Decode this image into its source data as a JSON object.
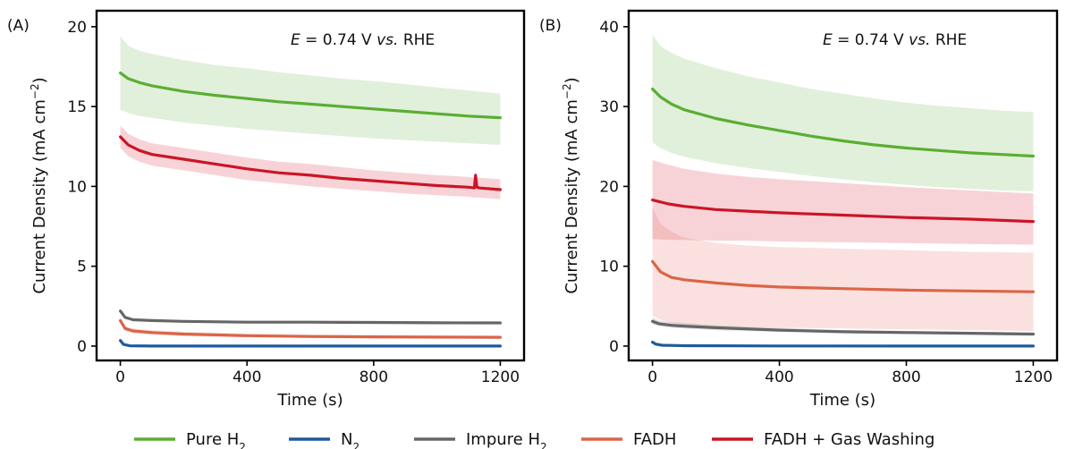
{
  "chart_data": [
    {
      "type": "line",
      "panel_label": "(A)",
      "annotation": {
        "italic": "E",
        "mid": " = 0.74 V ",
        "italic2": "vs.",
        "tail": " RHE"
      },
      "xlabel": "Time (s)",
      "ylabel": "Current Density (mA cm",
      "ylabel_sup": "−2",
      "ylabel_end": ")",
      "xlim": [
        -75,
        1275
      ],
      "ylim": [
        -0.9,
        21
      ],
      "xticks": [
        0,
        400,
        800,
        1200
      ],
      "yticks": [
        0,
        5,
        10,
        15,
        20
      ],
      "series": [
        {
          "key": "pure_h2",
          "x": [
            0,
            25,
            60,
            100,
            200,
            300,
            400,
            500,
            600,
            700,
            800,
            900,
            1000,
            1100,
            1200
          ],
          "y": [
            17.1,
            16.75,
            16.5,
            16.3,
            15.95,
            15.7,
            15.5,
            15.3,
            15.15,
            15.0,
            14.85,
            14.7,
            14.55,
            14.4,
            14.3
          ],
          "band_low": [
            14.8,
            14.6,
            14.4,
            14.3,
            14.0,
            13.8,
            13.6,
            13.45,
            13.3,
            13.15,
            13.0,
            12.9,
            12.8,
            12.7,
            12.6
          ],
          "band_high": [
            19.4,
            18.8,
            18.5,
            18.3,
            17.9,
            17.6,
            17.4,
            17.15,
            16.95,
            16.75,
            16.6,
            16.4,
            16.2,
            16.0,
            15.8
          ]
        },
        {
          "key": "fadh_gas",
          "x": [
            0,
            25,
            60,
            100,
            200,
            300,
            400,
            500,
            600,
            700,
            800,
            900,
            1000,
            1100,
            1118,
            1122,
            1126,
            1135,
            1200
          ],
          "y": [
            13.1,
            12.6,
            12.25,
            12.0,
            11.7,
            11.4,
            11.1,
            10.85,
            10.7,
            10.5,
            10.35,
            10.2,
            10.05,
            9.95,
            9.9,
            10.7,
            9.95,
            9.9,
            9.8
          ],
          "band_low": [
            12.4,
            11.9,
            11.55,
            11.3,
            11.0,
            10.7,
            10.4,
            10.2,
            10.0,
            9.85,
            9.7,
            9.55,
            9.45,
            9.35,
            9.3,
            9.3,
            9.3,
            9.3,
            9.2
          ],
          "band_high": [
            13.8,
            13.3,
            12.95,
            12.7,
            12.4,
            12.1,
            11.8,
            11.55,
            11.4,
            11.2,
            11.0,
            10.85,
            10.7,
            10.6,
            10.55,
            10.55,
            10.55,
            10.55,
            10.45
          ]
        },
        {
          "key": "impure_h2",
          "x": [
            0,
            15,
            40,
            100,
            200,
            400,
            600,
            800,
            1000,
            1200
          ],
          "y": [
            2.2,
            1.8,
            1.65,
            1.6,
            1.55,
            1.5,
            1.5,
            1.48,
            1.46,
            1.45
          ]
        },
        {
          "key": "fadh",
          "x": [
            0,
            15,
            40,
            100,
            200,
            400,
            600,
            800,
            1000,
            1200
          ],
          "y": [
            1.6,
            1.1,
            0.95,
            0.85,
            0.75,
            0.65,
            0.6,
            0.58,
            0.56,
            0.55
          ],
          "band_low": [
            1.4,
            0.95,
            0.8,
            0.7,
            0.62,
            0.55,
            0.5,
            0.48,
            0.46,
            0.45
          ],
          "band_high": [
            1.8,
            1.25,
            1.1,
            1.0,
            0.9,
            0.78,
            0.72,
            0.68,
            0.66,
            0.65
          ]
        },
        {
          "key": "n2",
          "x": [
            0,
            10,
            30,
            100,
            400,
            800,
            1200
          ],
          "y": [
            0.35,
            0.1,
            0.02,
            0.0,
            0.0,
            0.0,
            0.0
          ]
        }
      ]
    },
    {
      "type": "line",
      "panel_label": "(B)",
      "annotation": {
        "italic": "E",
        "mid": " = 0.74 V ",
        "italic2": "vs.",
        "tail": " RHE"
      },
      "xlabel": "Time (s)",
      "ylabel": "Current Density (mA cm",
      "ylabel_sup": "−2",
      "ylabel_end": ")",
      "xlim": [
        -75,
        1275
      ],
      "ylim": [
        -1.8,
        42
      ],
      "xticks": [
        0,
        400,
        800,
        1200
      ],
      "yticks": [
        0,
        10,
        20,
        30,
        40
      ],
      "series": [
        {
          "key": "pure_h2",
          "x": [
            0,
            25,
            60,
            100,
            200,
            300,
            400,
            500,
            600,
            700,
            800,
            900,
            1000,
            1100,
            1200
          ],
          "y": [
            32.2,
            31.2,
            30.3,
            29.6,
            28.5,
            27.7,
            27.0,
            26.3,
            25.7,
            25.2,
            24.8,
            24.5,
            24.2,
            24.0,
            23.8
          ],
          "band_low": [
            25.5,
            24.8,
            24.2,
            23.7,
            22.9,
            22.3,
            21.8,
            21.3,
            20.9,
            20.5,
            20.2,
            19.9,
            19.7,
            19.5,
            19.4
          ],
          "band_high": [
            39.0,
            37.6,
            36.7,
            36.0,
            34.8,
            33.8,
            33.0,
            32.2,
            31.6,
            31.0,
            30.5,
            30.1,
            29.8,
            29.5,
            29.3
          ]
        },
        {
          "key": "fadh_gas",
          "x": [
            0,
            50,
            100,
            200,
            300,
            400,
            600,
            800,
            1000,
            1200
          ],
          "y": [
            18.3,
            17.8,
            17.5,
            17.1,
            16.9,
            16.7,
            16.4,
            16.1,
            15.9,
            15.6
          ],
          "band_low": [
            13.4,
            13.3,
            13.3,
            13.2,
            13.2,
            13.1,
            13.0,
            12.9,
            12.8,
            12.7
          ],
          "band_high": [
            23.3,
            22.7,
            22.2,
            21.6,
            21.2,
            20.9,
            20.4,
            19.9,
            19.5,
            19.1
          ]
        },
        {
          "key": "fadh",
          "x": [
            0,
            25,
            60,
            100,
            200,
            300,
            400,
            600,
            800,
            1000,
            1200
          ],
          "y": [
            10.6,
            9.3,
            8.6,
            8.3,
            7.9,
            7.6,
            7.4,
            7.2,
            7.0,
            6.9,
            6.8
          ],
          "band_low": [
            3.8,
            3.3,
            2.9,
            2.7,
            2.5,
            2.4,
            2.3,
            2.2,
            2.1,
            2.0,
            1.9
          ],
          "band_high": [
            17.4,
            15.3,
            14.3,
            13.6,
            12.9,
            12.6,
            12.4,
            12.2,
            12.0,
            11.8,
            11.7
          ]
        },
        {
          "key": "impure_h2",
          "x": [
            0,
            20,
            60,
            100,
            200,
            400,
            600,
            800,
            1000,
            1200
          ],
          "y": [
            3.1,
            2.8,
            2.6,
            2.5,
            2.3,
            2.0,
            1.8,
            1.7,
            1.6,
            1.5
          ],
          "band_low": [
            2.7,
            2.5,
            2.3,
            2.2,
            2.0,
            1.8,
            1.6,
            1.5,
            1.4,
            1.3
          ],
          "band_high": [
            3.6,
            3.2,
            3.0,
            2.9,
            2.6,
            2.3,
            2.0,
            1.9,
            1.8,
            1.7
          ]
        },
        {
          "key": "n2",
          "x": [
            0,
            10,
            30,
            100,
            400,
            800,
            1200
          ],
          "y": [
            0.5,
            0.25,
            0.1,
            0.05,
            0.02,
            0.0,
            0.0
          ]
        }
      ]
    }
  ],
  "legend": [
    {
      "key": "pure_h2",
      "label": "Pure H",
      "sub": "2"
    },
    {
      "key": "n2",
      "label": "N",
      "sub": "2"
    },
    {
      "key": "impure_h2",
      "label": "Impure H",
      "sub": "2"
    },
    {
      "key": "fadh",
      "label": "FADH",
      "sub": ""
    },
    {
      "key": "fadh_gas",
      "label": "FADH + Gas Washing",
      "sub": ""
    }
  ],
  "colors": {
    "pure_h2": "#5aae33",
    "n2": "#1f5a9e",
    "impure_h2": "#666666",
    "fadh": "#db6547",
    "fadh_gas": "#cc1426"
  },
  "band_colors": {
    "pure_h2": "rgba(90,174,51,0.18)",
    "fadh_gas": "rgba(224,80,95,0.25)",
    "fadh": "rgba(234,120,110,0.22)",
    "impure_h2": "rgba(120,120,120,0.22)"
  }
}
